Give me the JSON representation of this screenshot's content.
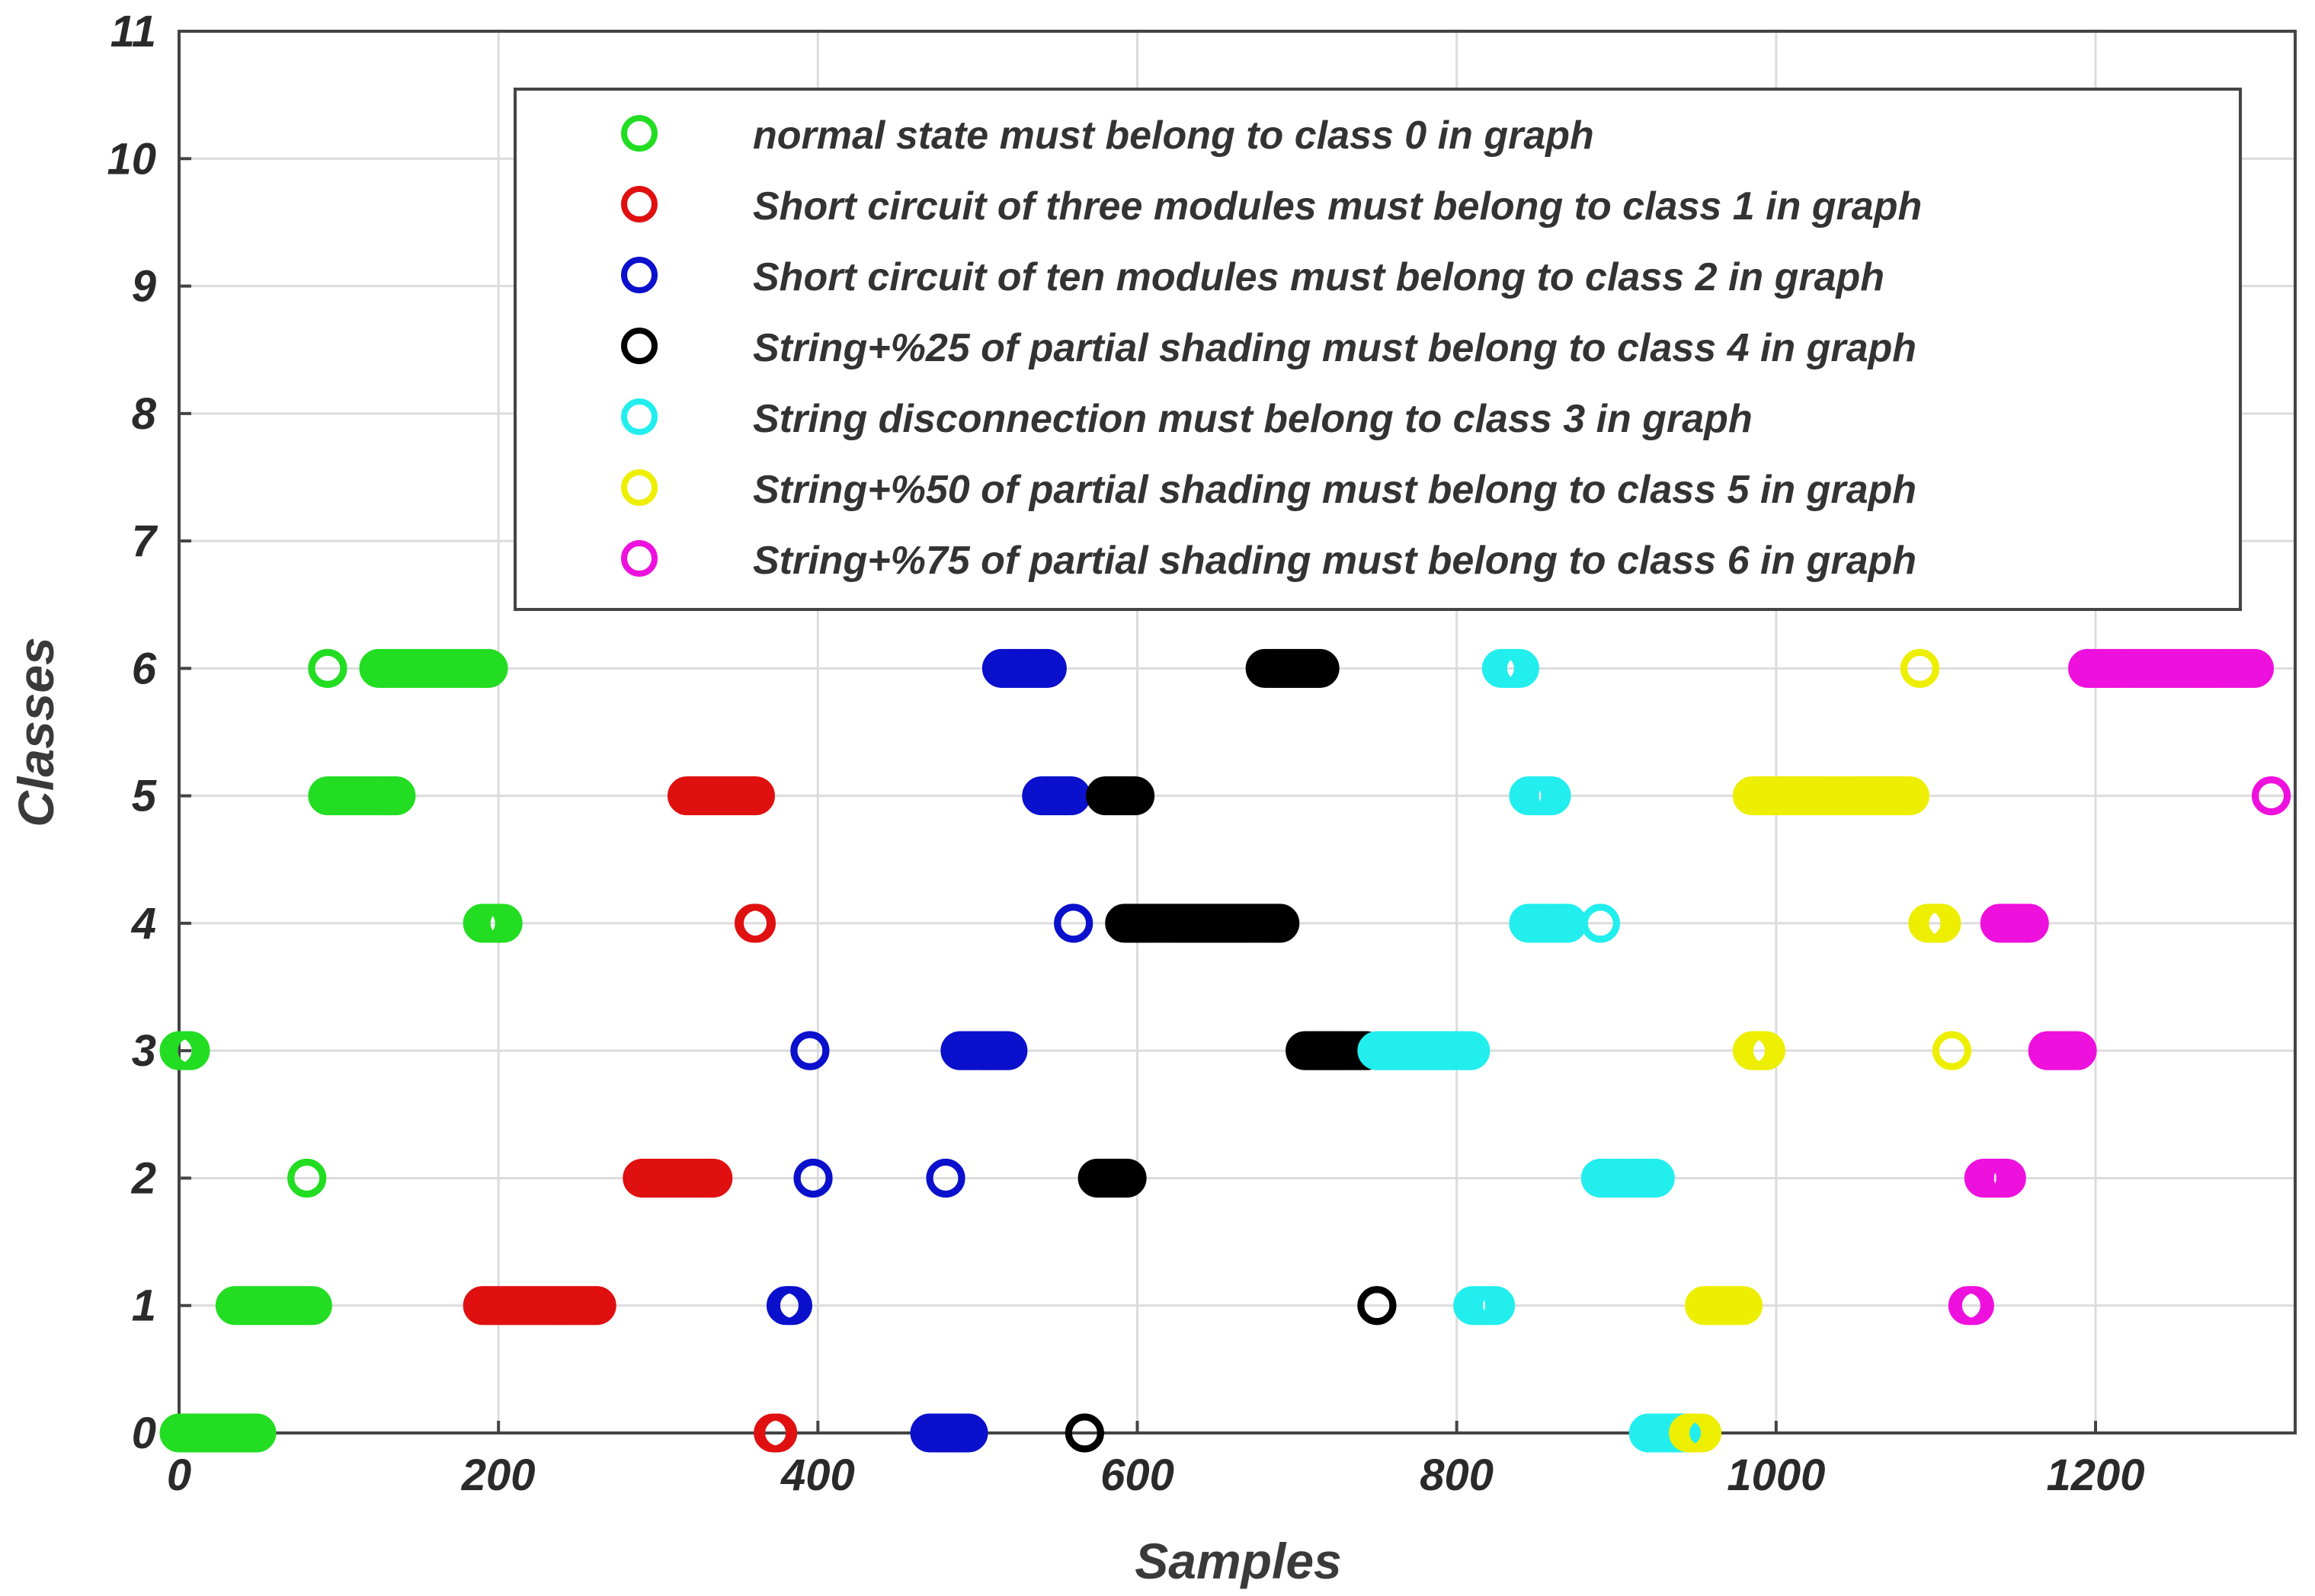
{
  "chart_data": {
    "type": "scatter",
    "xlabel": "Samples",
    "ylabel": "Classes",
    "xlim": [
      0,
      1325
    ],
    "ylim": [
      0,
      11
    ],
    "xticks": [
      0,
      200,
      400,
      600,
      800,
      1000,
      1200
    ],
    "yticks": [
      0,
      1,
      2,
      3,
      4,
      5,
      6,
      7,
      8,
      9,
      10,
      11
    ],
    "grid": true,
    "legend_position": "top-right",
    "series": [
      {
        "name": "normal state must belong to class 0 in graph",
        "color": "#22dd22",
        "runs": [
          {
            "y": 6,
            "x_start": 93,
            "x_end": 93
          },
          {
            "y": 6,
            "x_start": 125,
            "x_end": 195
          },
          {
            "y": 5,
            "x_start": 93,
            "x_end": 136
          },
          {
            "y": 4,
            "x_start": 190,
            "x_end": 203
          },
          {
            "y": 3,
            "x_start": 0,
            "x_end": 8
          },
          {
            "y": 2,
            "x_start": 80,
            "x_end": 80
          },
          {
            "y": 1,
            "x_start": 35,
            "x_end": 85
          },
          {
            "y": 0,
            "x_start": 0,
            "x_end": 50
          }
        ]
      },
      {
        "name": "Short circuit of three modules must belong to class 1 in graph",
        "color": "#e01010",
        "runs": [
          {
            "y": 5,
            "x_start": 318,
            "x_end": 362
          },
          {
            "y": 4,
            "x_start": 360,
            "x_end": 362
          },
          {
            "y": 2,
            "x_start": 290,
            "x_end": 335
          },
          {
            "y": 1,
            "x_start": 190,
            "x_end": 262
          },
          {
            "y": 0,
            "x_start": 372,
            "x_end": 375
          }
        ]
      },
      {
        "name": "Short circuit of ten modules must belong to class 2 in graph",
        "color": "#0a10cc",
        "runs": [
          {
            "y": 6,
            "x_start": 515,
            "x_end": 545
          },
          {
            "y": 5,
            "x_start": 540,
            "x_end": 560
          },
          {
            "y": 4,
            "x_start": 560,
            "x_end": 560
          },
          {
            "y": 3,
            "x_start": 395,
            "x_end": 395
          },
          {
            "y": 3,
            "x_start": 489,
            "x_end": 520
          },
          {
            "y": 2,
            "x_start": 397,
            "x_end": 397
          },
          {
            "y": 2,
            "x_start": 480,
            "x_end": 480
          },
          {
            "y": 1,
            "x_start": 380,
            "x_end": 385
          },
          {
            "y": 0,
            "x_start": 470,
            "x_end": 495
          }
        ]
      },
      {
        "name": "String+%25 of partial shading must belong to class 4 in graph",
        "color": "#000000",
        "runs": [
          {
            "y": 6,
            "x_start": 680,
            "x_end": 715
          },
          {
            "y": 5,
            "x_start": 580,
            "x_end": 600
          },
          {
            "y": 4,
            "x_start": 592,
            "x_end": 690
          },
          {
            "y": 3,
            "x_start": 705,
            "x_end": 745
          },
          {
            "y": 2,
            "x_start": 575,
            "x_end": 595
          },
          {
            "y": 1,
            "x_start": 750,
            "x_end": 750
          },
          {
            "y": 0,
            "x_start": 567,
            "x_end": 567
          }
        ]
      },
      {
        "name": "String disconnection must belong to class 3 in graph",
        "color": "#22eeee",
        "runs": [
          {
            "y": 6,
            "x_start": 828,
            "x_end": 840
          },
          {
            "y": 5,
            "x_start": 845,
            "x_end": 860
          },
          {
            "y": 4,
            "x_start": 845,
            "x_end": 870
          },
          {
            "y": 4,
            "x_start": 890,
            "x_end": 890
          },
          {
            "y": 3,
            "x_start": 750,
            "x_end": 810
          },
          {
            "y": 2,
            "x_start": 890,
            "x_end": 925
          },
          {
            "y": 1,
            "x_start": 810,
            "x_end": 825
          },
          {
            "y": 0,
            "x_start": 920,
            "x_end": 945
          }
        ]
      },
      {
        "name": "String+%50 of partial shading must belong to class 5 in graph",
        "color": "#eeee00",
        "runs": [
          {
            "y": 6,
            "x_start": 1090,
            "x_end": 1090
          },
          {
            "y": 5,
            "x_start": 985,
            "x_end": 1085
          },
          {
            "y": 4,
            "x_start": 1095,
            "x_end": 1105
          },
          {
            "y": 3,
            "x_start": 985,
            "x_end": 995
          },
          {
            "y": 3,
            "x_start": 1110,
            "x_end": 1110
          },
          {
            "y": 1,
            "x_start": 955,
            "x_end": 980
          },
          {
            "y": 0,
            "x_start": 945,
            "x_end": 955
          }
        ]
      },
      {
        "name": "String+%75 of partial shading must belong to class 6 in graph",
        "color": "#ee10dd",
        "runs": [
          {
            "y": 6,
            "x_start": 1195,
            "x_end": 1300
          },
          {
            "y": 5,
            "x_start": 1310,
            "x_end": 1310
          },
          {
            "y": 4,
            "x_start": 1140,
            "x_end": 1160
          },
          {
            "y": 3,
            "x_start": 1170,
            "x_end": 1190
          },
          {
            "y": 2,
            "x_start": 1130,
            "x_end": 1145
          },
          {
            "y": 1,
            "x_start": 1120,
            "x_end": 1125
          }
        ]
      }
    ]
  }
}
